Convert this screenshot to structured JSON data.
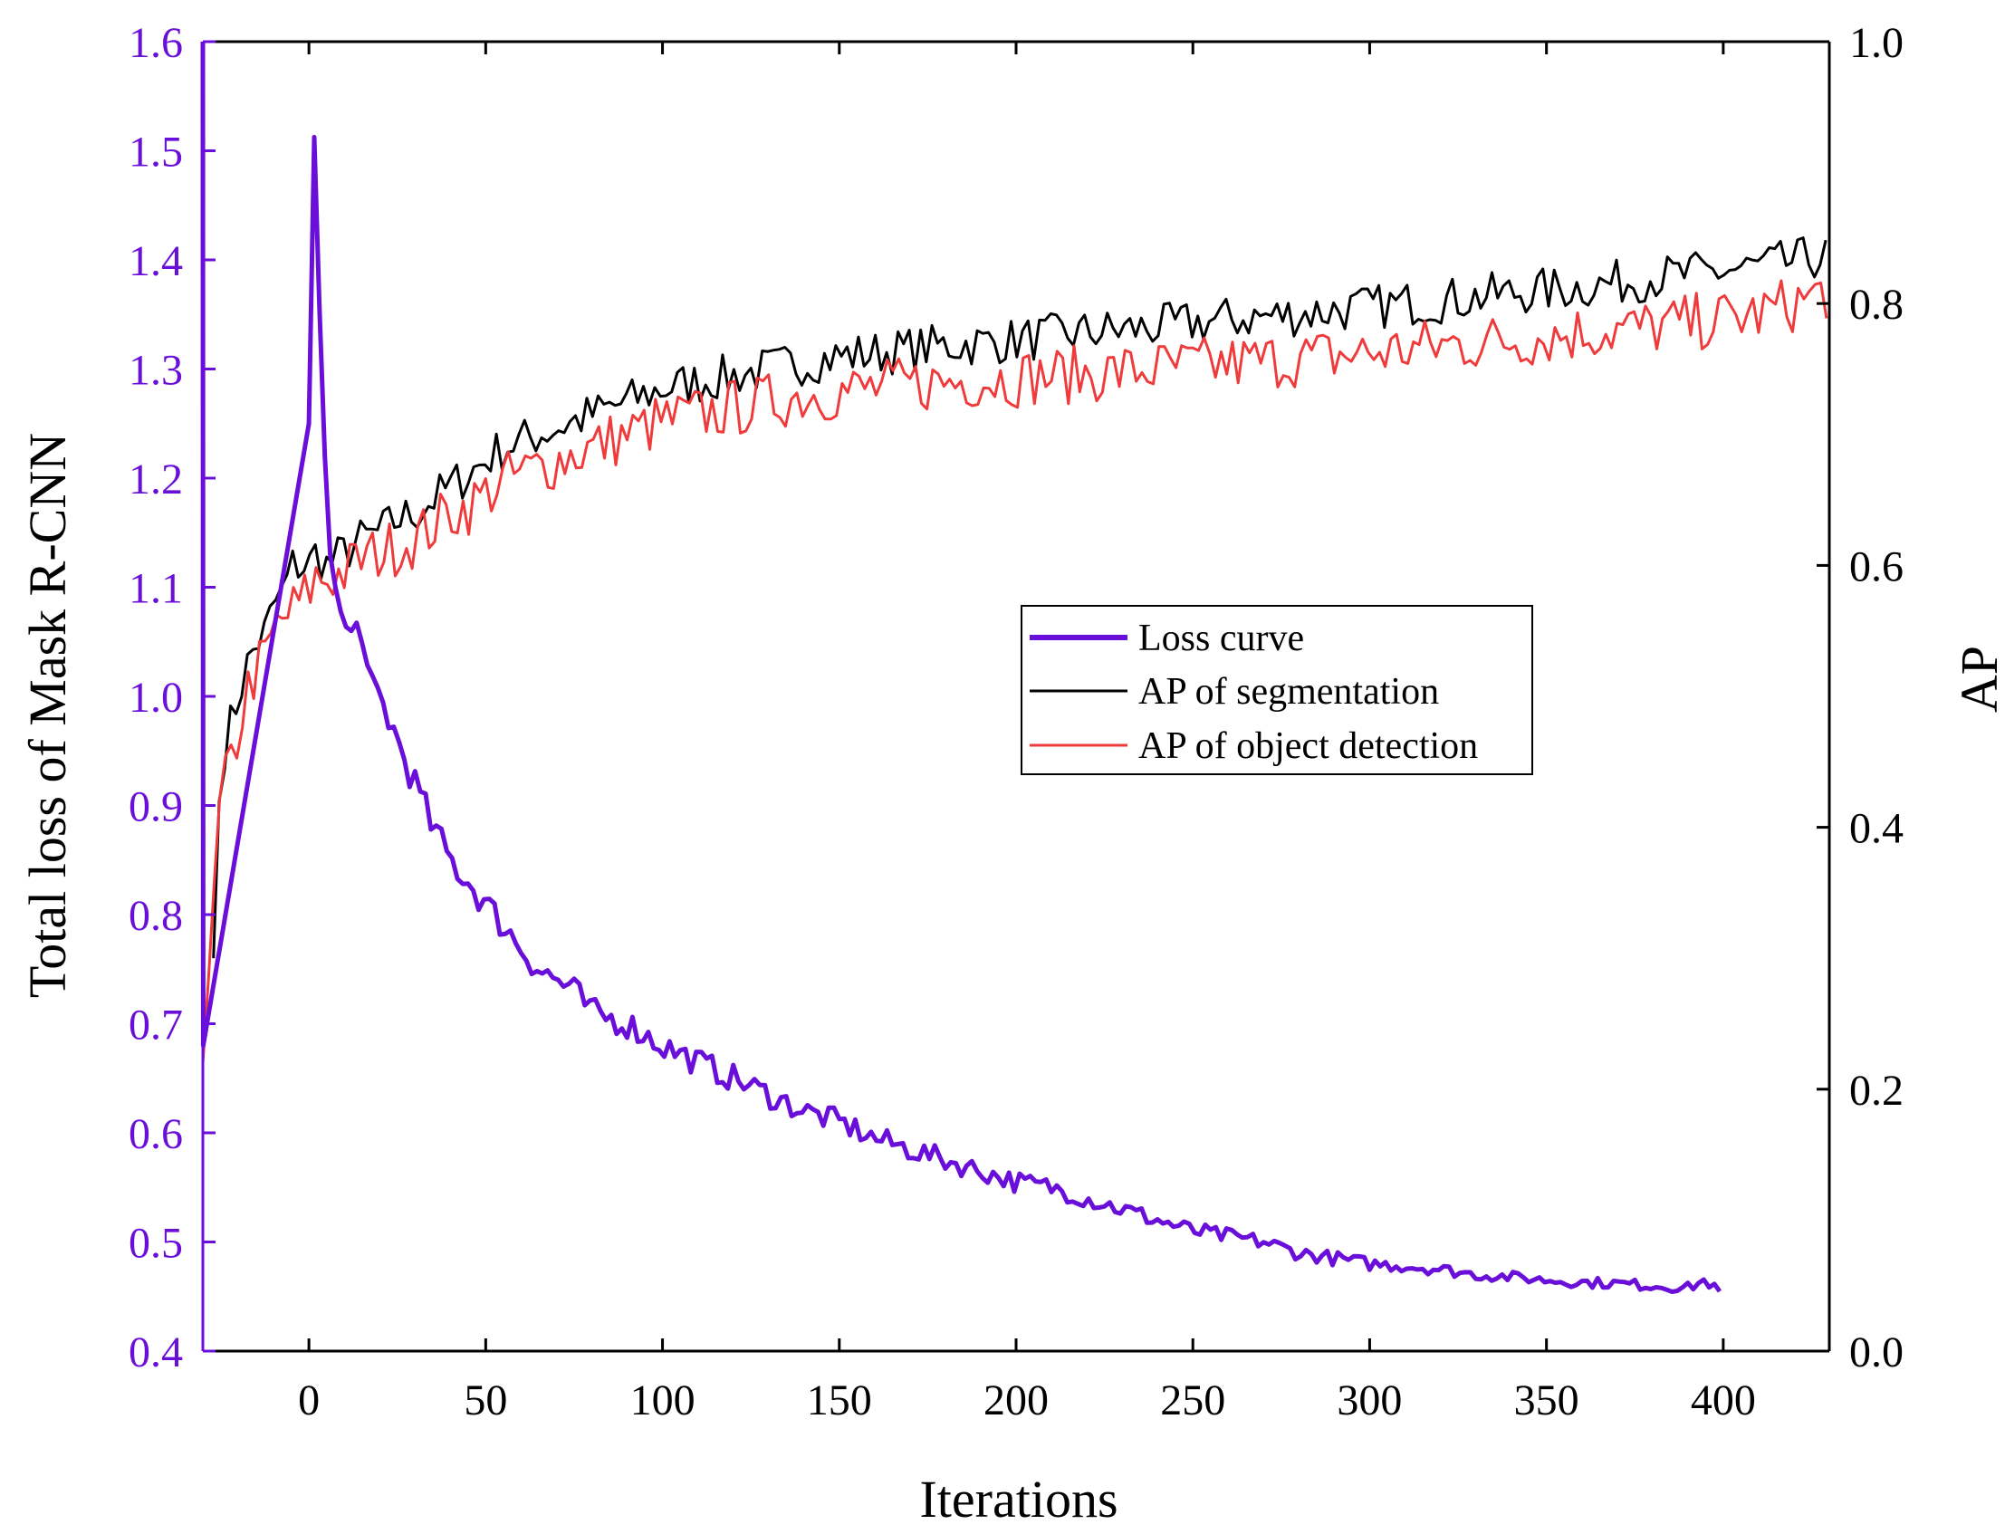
{
  "colors": {
    "loss": "#6a0fd9",
    "seg": "#000000",
    "det": "#ef3b3b",
    "axis": "#000000"
  },
  "chart_data": {
    "type": "line",
    "title": "",
    "xlabel": "Iterations",
    "ylabel_left": "Total loss of Mask R-CNN",
    "ylabel_right": "AP",
    "xlim": [
      -30,
      430
    ],
    "ylim_left": [
      0.4,
      1.6
    ],
    "ylim_right": [
      0.0,
      1.0
    ],
    "x_ticks": [
      0,
      50,
      100,
      150,
      200,
      250,
      300,
      350,
      400
    ],
    "x_tick_labels": [
      "0",
      "50",
      "100",
      "150",
      "200",
      "250",
      "300",
      "350",
      "400"
    ],
    "left_ticks": [
      0.4,
      0.5,
      0.6,
      0.7,
      0.8,
      0.9,
      1.0,
      1.1,
      1.2,
      1.3,
      1.4,
      1.5,
      1.6
    ],
    "left_tick_labels": [
      "0.4",
      "0.5",
      "0.6",
      "0.7",
      "0.8",
      "0.9",
      "1.0",
      "1.1",
      "1.2",
      "1.3",
      "1.4",
      "1.5",
      "1.6"
    ],
    "right_ticks": [
      0.0,
      0.2,
      0.4,
      0.6,
      0.8,
      1.0
    ],
    "right_tick_labels": [
      "0.0",
      "0.2",
      "0.4",
      "0.6",
      "0.8",
      "1.0"
    ],
    "legend": {
      "position": "center-right",
      "entries": [
        "Loss curve",
        "AP of segmentation",
        "AP of object detection"
      ]
    },
    "series": [
      {
        "name": "Loss curve",
        "axis": "left",
        "x": [
          -30,
          -29.9,
          0,
          1,
          4,
          6,
          8,
          10,
          12,
          14,
          16,
          20,
          25,
          30,
          35,
          40,
          45,
          50,
          55,
          60,
          65,
          70,
          75,
          80,
          85,
          90,
          95,
          100,
          110,
          120,
          130,
          140,
          150,
          160,
          170,
          180,
          190,
          200,
          210,
          220,
          230,
          240,
          250,
          260,
          270,
          280,
          290,
          300,
          310,
          320,
          330,
          340,
          350,
          360,
          370,
          380,
          390,
          395,
          400
        ],
        "y": [
          1.6,
          0.68,
          1.25,
          1.565,
          1.25,
          1.13,
          1.09,
          1.065,
          1.06,
          1.07,
          1.015,
          1.0,
          0.96,
          0.92,
          0.88,
          0.85,
          0.83,
          0.81,
          0.79,
          0.77,
          0.75,
          0.74,
          0.73,
          0.71,
          0.705,
          0.7,
          0.69,
          0.68,
          0.665,
          0.65,
          0.635,
          0.62,
          0.61,
          0.595,
          0.585,
          0.575,
          0.565,
          0.555,
          0.55,
          0.54,
          0.53,
          0.52,
          0.51,
          0.505,
          0.5,
          0.49,
          0.485,
          0.48,
          0.478,
          0.475,
          0.47,
          0.468,
          0.465,
          0.463,
          0.462,
          0.46,
          0.458,
          0.465,
          0.45
        ]
      },
      {
        "name": "AP of segmentation",
        "axis": "right",
        "x": [
          -27,
          -25,
          -22,
          -20,
          -18,
          -15,
          -12,
          -10,
          -7,
          -5,
          -3,
          0,
          2,
          5,
          10,
          15,
          20,
          25,
          30,
          35,
          40,
          45,
          50,
          55,
          60,
          65,
          70,
          75,
          80,
          85,
          90,
          95,
          100,
          110,
          120,
          130,
          140,
          150,
          160,
          170,
          180,
          190,
          200,
          210,
          220,
          230,
          240,
          250,
          260,
          270,
          280,
          290,
          300,
          310,
          320,
          330,
          340,
          350,
          360,
          370,
          380,
          390,
          400,
          410,
          420,
          425,
          430
        ],
        "y": [
          0.3,
          0.45,
          0.48,
          0.5,
          0.52,
          0.54,
          0.55,
          0.57,
          0.58,
          0.6,
          0.6,
          0.6,
          0.61,
          0.6,
          0.61,
          0.62,
          0.625,
          0.635,
          0.64,
          0.65,
          0.66,
          0.67,
          0.68,
          0.69,
          0.695,
          0.7,
          0.705,
          0.71,
          0.715,
          0.72,
          0.725,
          0.73,
          0.735,
          0.74,
          0.745,
          0.75,
          0.755,
          0.76,
          0.762,
          0.765,
          0.768,
          0.77,
          0.772,
          0.775,
          0.778,
          0.78,
          0.782,
          0.785,
          0.788,
          0.79,
          0.792,
          0.795,
          0.797,
          0.8,
          0.802,
          0.805,
          0.808,
          0.81,
          0.813,
          0.816,
          0.82,
          0.822,
          0.825,
          0.828,
          0.832,
          0.835,
          0.835
        ]
      },
      {
        "name": "AP of object detection",
        "axis": "right",
        "x": [
          -30,
          -27,
          -25,
          -22,
          -20,
          -18,
          -15,
          -12,
          -10,
          -7,
          -5,
          -3,
          0,
          2,
          5,
          10,
          15,
          20,
          25,
          30,
          35,
          40,
          45,
          50,
          55,
          60,
          65,
          70,
          75,
          80,
          85,
          90,
          95,
          100,
          110,
          120,
          130,
          140,
          150,
          160,
          170,
          180,
          190,
          200,
          210,
          220,
          230,
          240,
          250,
          260,
          270,
          280,
          290,
          300,
          310,
          320,
          330,
          340,
          350,
          360,
          370,
          380,
          390,
          400,
          410,
          420,
          425,
          430
        ],
        "y": [
          0.22,
          0.34,
          0.42,
          0.45,
          0.47,
          0.5,
          0.52,
          0.53,
          0.55,
          0.56,
          0.565,
          0.57,
          0.58,
          0.59,
          0.59,
          0.595,
          0.605,
          0.61,
          0.615,
          0.62,
          0.63,
          0.64,
          0.645,
          0.655,
          0.665,
          0.67,
          0.675,
          0.68,
          0.685,
          0.69,
          0.695,
          0.7,
          0.705,
          0.71,
          0.715,
          0.72,
          0.725,
          0.73,
          0.733,
          0.735,
          0.738,
          0.74,
          0.742,
          0.743,
          0.745,
          0.746,
          0.748,
          0.75,
          0.752,
          0.754,
          0.756,
          0.758,
          0.76,
          0.762,
          0.765,
          0.768,
          0.77,
          0.772,
          0.775,
          0.778,
          0.78,
          0.782,
          0.785,
          0.788,
          0.792,
          0.8,
          0.805,
          0.81
        ]
      }
    ]
  }
}
